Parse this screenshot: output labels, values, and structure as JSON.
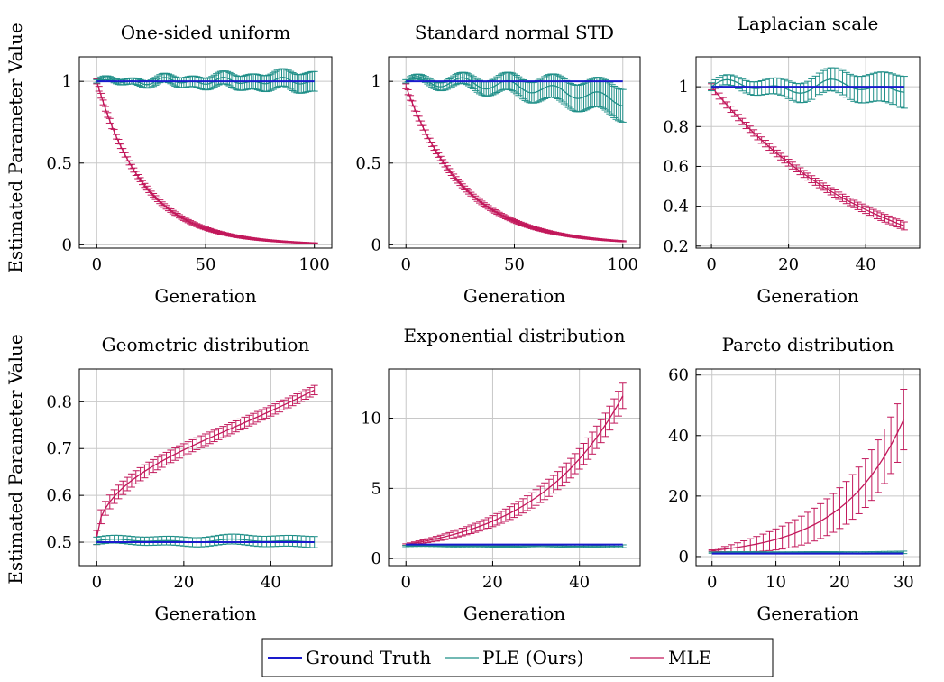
{
  "figure": {
    "ylabel": "Estimated Parameter Value",
    "colors": {
      "ground_truth": "#1a1acc",
      "ple": "#1f8f88",
      "mle": "#c2185b"
    }
  },
  "legend": [
    {
      "key": "ground_truth",
      "label": "Ground Truth"
    },
    {
      "key": "ple",
      "label": "PLE (Ours)"
    },
    {
      "key": "mle",
      "label": "MLE"
    }
  ],
  "chart_data": [
    {
      "type": "line",
      "title": "One-sided uniform",
      "xlabel": "Generation",
      "xlim": [
        -8,
        108
      ],
      "ylim": [
        -0.02,
        1.15
      ],
      "xticks": [
        0,
        50,
        100
      ],
      "yticks": [
        0,
        0.5,
        1
      ],
      "ytick_labels": [
        "0",
        "0.5",
        "1"
      ],
      "grid": true,
      "x_max": 100,
      "n_points": 101,
      "series": [
        {
          "key": "ground_truth",
          "name": "Ground Truth",
          "kind": "constant",
          "value": 1
        },
        {
          "key": "ple",
          "name": "PLE (Ours)",
          "kind": "noisy",
          "value": 1,
          "amp": 0.025,
          "err_start": 0.01,
          "err_end": 0.06
        },
        {
          "key": "mle",
          "name": "MLE",
          "kind": "exp",
          "start": 1.0,
          "rate": 0.046,
          "err_start": 0.015,
          "err_end": 0.002
        }
      ]
    },
    {
      "type": "line",
      "title": "Standard normal STD",
      "xlabel": "Generation",
      "xlim": [
        -8,
        108
      ],
      "ylim": [
        -0.02,
        1.15
      ],
      "xticks": [
        0,
        50,
        100
      ],
      "yticks": [
        0,
        0.5,
        1
      ],
      "ytick_labels": [
        "0",
        "0.5",
        "1"
      ],
      "grid": true,
      "x_max": 100,
      "n_points": 101,
      "series": [
        {
          "key": "ground_truth",
          "name": "Ground Truth",
          "kind": "constant",
          "value": 1
        },
        {
          "key": "ple",
          "name": "PLE (Ours)",
          "kind": "noisy_drop",
          "value": 1,
          "amp": 0.03,
          "drop": 0.12,
          "err_start": 0.01,
          "err_end": 0.1
        },
        {
          "key": "mle",
          "name": "MLE",
          "kind": "exp",
          "start": 0.97,
          "rate": 0.038,
          "err_start": 0.015,
          "err_end": 0.003
        }
      ]
    },
    {
      "type": "line",
      "title": "Laplacian scale",
      "xlabel": "Generation",
      "xlim": [
        -4,
        54
      ],
      "ylim": [
        0.19,
        1.15
      ],
      "xticks": [
        0,
        20,
        40
      ],
      "yticks": [
        0.2,
        0.4,
        0.6,
        0.8,
        1
      ],
      "ytick_labels": [
        "0.2",
        "0.4",
        "0.6",
        "0.8",
        "1"
      ],
      "grid": true,
      "x_max": 50,
      "n_points": 51,
      "series": [
        {
          "key": "ground_truth",
          "name": "Ground Truth",
          "kind": "constant",
          "value": 1
        },
        {
          "key": "ple",
          "name": "PLE (Ours)",
          "kind": "noisy",
          "value": 1.0,
          "amp": 0.04,
          "err_start": 0.02,
          "err_end": 0.08
        },
        {
          "key": "mle",
          "name": "MLE",
          "kind": "exp",
          "start": 1.0,
          "rate": 0.024,
          "err_start": 0.015,
          "err_end": 0.02
        }
      ]
    },
    {
      "type": "line",
      "title": "Geometric distribution",
      "xlabel": "Generation",
      "xlim": [
        -4,
        54
      ],
      "ylim": [
        0.45,
        0.87
      ],
      "xticks": [
        0,
        20,
        40
      ],
      "yticks": [
        0.5,
        0.6,
        0.7,
        0.8
      ],
      "ytick_labels": [
        "0.5",
        "0.6",
        "0.7",
        "0.8"
      ],
      "grid": true,
      "x_max": 50,
      "n_points": 51,
      "series": [
        {
          "key": "ground_truth",
          "name": "Ground Truth",
          "kind": "constant",
          "value": 0.5
        },
        {
          "key": "ple",
          "name": "PLE (Ours)",
          "kind": "noisy",
          "value": 0.503,
          "amp": 0.004,
          "err_start": 0.008,
          "err_end": 0.012
        },
        {
          "key": "mle",
          "name": "MLE",
          "kind": "rise",
          "start": 0.51,
          "end": 0.825,
          "err_start": 0.015,
          "err_end": 0.01
        }
      ]
    },
    {
      "type": "line",
      "title": "Exponential distribution",
      "xlabel": "Generation",
      "xlim": [
        -4,
        54
      ],
      "ylim": [
        -0.5,
        13.5
      ],
      "xticks": [
        0,
        20,
        40
      ],
      "yticks": [
        0,
        5,
        10
      ],
      "ytick_labels": [
        "0",
        "5",
        "10"
      ],
      "grid": true,
      "x_max": 50,
      "n_points": 51,
      "series": [
        {
          "key": "ground_truth",
          "name": "Ground Truth",
          "kind": "constant",
          "value": 1
        },
        {
          "key": "ple",
          "name": "PLE (Ours)",
          "kind": "noisy",
          "value": 0.9,
          "amp": 0.03,
          "err_start": 0.05,
          "err_end": 0.1
        },
        {
          "key": "mle",
          "name": "MLE",
          "kind": "growth",
          "start": 1.0,
          "rate": 0.049,
          "err_start": 0.05,
          "err_end": 0.9
        }
      ]
    },
    {
      "type": "line",
      "title": "Pareto distribution",
      "xlabel": "Generation",
      "xlim": [
        -2.5,
        32.5
      ],
      "ylim": [
        -3,
        62
      ],
      "xticks": [
        0,
        10,
        20,
        30
      ],
      "yticks": [
        0,
        20,
        40,
        60
      ],
      "ytick_labels": [
        "0",
        "20",
        "40",
        "60"
      ],
      "grid": true,
      "x_max": 30,
      "n_points": 31,
      "series": [
        {
          "key": "ground_truth",
          "name": "Ground Truth",
          "kind": "constant",
          "value": 1
        },
        {
          "key": "ple",
          "name": "PLE (Ours)",
          "kind": "noisy",
          "value": 1.3,
          "amp": 0.1,
          "err_start": 0.2,
          "err_end": 0.4
        },
        {
          "key": "mle",
          "name": "MLE",
          "kind": "growth",
          "start": 2.0,
          "rate": 0.104,
          "err_start": 0.2,
          "err_end": 10
        }
      ]
    }
  ]
}
